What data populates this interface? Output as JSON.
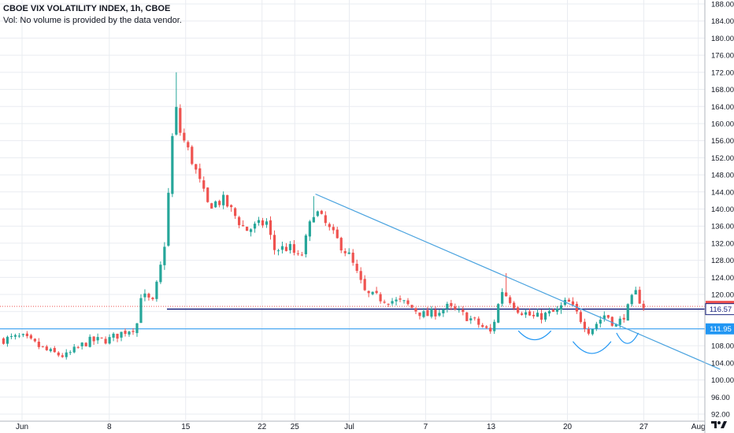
{
  "header": {
    "title": "CBOE VIX VOLATILITY INDEX, 1h, CBOE",
    "volume_note": "Vol: No volume is provided by the data vendor."
  },
  "colors": {
    "up": "#26a69a",
    "down": "#ef5350",
    "trendline": "#4aa3df",
    "support_line": "#2196f3",
    "mid_line": "#1a237e",
    "last_price_line": "#ef5350",
    "grid": "#e9ecf1",
    "axis_text": "#131722",
    "wedge_curve": "#2196f3"
  },
  "chart_data": {
    "type": "candlestick",
    "timeframe": "1h",
    "y_axis": {
      "range": [
        88,
        189
      ],
      "ticks": [
        92,
        96,
        100,
        104,
        108,
        112,
        116,
        120,
        124,
        128,
        132,
        136,
        140,
        144,
        148,
        152,
        156,
        160,
        164,
        168,
        172,
        176,
        180,
        184,
        188
      ]
    },
    "x_axis": {
      "labels": [
        {
          "label": "Jun",
          "day": 0
        },
        {
          "label": "8",
          "day": 8
        },
        {
          "label": "15",
          "day": 15
        },
        {
          "label": "22",
          "day": 22
        },
        {
          "label": "25",
          "day": 25
        },
        {
          "label": "Jul",
          "day": 30
        },
        {
          "label": "7",
          "day": 37
        },
        {
          "label": "13",
          "day": 43
        },
        {
          "label": "20",
          "day": 50
        },
        {
          "label": "27",
          "day": 57
        },
        {
          "label": "Aug",
          "day": 62
        }
      ]
    },
    "price_path": [
      {
        "day": -1.7,
        "price": 109.5
      },
      {
        "day": 0,
        "price": 110.0
      },
      {
        "day": 2.5,
        "price": 106.5
      },
      {
        "day": 4.0,
        "price": 105.5
      },
      {
        "day": 6.0,
        "price": 109.0
      },
      {
        "day": 8.0,
        "price": 109.5
      },
      {
        "day": 9.5,
        "price": 111.5
      },
      {
        "day": 10.5,
        "price": 112.5
      },
      {
        "day": 10.9,
        "price": 120.0
      },
      {
        "day": 12.0,
        "price": 118.0
      },
      {
        "day": 13.0,
        "price": 130.0
      },
      {
        "day": 13.5,
        "price": 146.0
      },
      {
        "day": 14.0,
        "price": 165.0
      },
      {
        "day": 14.5,
        "price": 158.0
      },
      {
        "day": 15.5,
        "price": 152.0
      },
      {
        "day": 17.0,
        "price": 141.0
      },
      {
        "day": 18.5,
        "price": 142.0
      },
      {
        "day": 20.5,
        "price": 135.0
      },
      {
        "day": 22.5,
        "price": 137.0
      },
      {
        "day": 23.0,
        "price": 130.5
      },
      {
        "day": 24.5,
        "price": 131.0
      },
      {
        "day": 25.5,
        "price": 128.0
      },
      {
        "day": 26.8,
        "price": 140.0
      },
      {
        "day": 28.5,
        "price": 134.0
      },
      {
        "day": 30.0,
        "price": 129.0
      },
      {
        "day": 31.5,
        "price": 120.0
      },
      {
        "day": 33.0,
        "price": 119.0
      },
      {
        "day": 35.0,
        "price": 118.0
      },
      {
        "day": 37.0,
        "price": 115.0
      },
      {
        "day": 39.0,
        "price": 117.0
      },
      {
        "day": 41.0,
        "price": 114.5
      },
      {
        "day": 43.0,
        "price": 111.0
      },
      {
        "day": 44.0,
        "price": 121.0
      },
      {
        "day": 45.5,
        "price": 116.5
      },
      {
        "day": 47.0,
        "price": 114.5
      },
      {
        "day": 49.0,
        "price": 116.0
      },
      {
        "day": 50.0,
        "price": 118.5
      },
      {
        "day": 51.0,
        "price": 115.0
      },
      {
        "day": 52.0,
        "price": 111.5
      },
      {
        "day": 53.5,
        "price": 115.5
      },
      {
        "day": 54.5,
        "price": 112.5
      },
      {
        "day": 55.5,
        "price": 116.5
      },
      {
        "day": 56.2,
        "price": 120.5
      },
      {
        "day": 56.8,
        "price": 118.0
      },
      {
        "day": 57.0,
        "price": 117.22
      }
    ],
    "notable_highs": [
      {
        "day": 14.0,
        "high": 172.0
      },
      {
        "day": 26.8,
        "high": 143.0
      },
      {
        "day": 44.2,
        "high": 125.0
      }
    ],
    "horizontal_levels": [
      {
        "name": "last_price",
        "value": 117.22,
        "label": "117.22"
      },
      {
        "name": "resistance",
        "value": 116.57,
        "label": "116.57"
      },
      {
        "name": "support",
        "value": 111.95,
        "label": "111.95"
      }
    ],
    "trendline": {
      "from": {
        "day": 26.9,
        "price": 143.5
      },
      "to": {
        "day": 64.0,
        "price": 102.5
      }
    },
    "wedge_curves": [
      {
        "from_day": 45.5,
        "to_day": 48.5,
        "price": 111.5,
        "depth": 3.0
      },
      {
        "from_day": 50.5,
        "to_day": 54.0,
        "price": 109.0,
        "depth": 4.0
      },
      {
        "from_day": 54.5,
        "to_day": 56.5,
        "price": 111.0,
        "depth": 3.5
      }
    ],
    "candle_seed": 7
  }
}
